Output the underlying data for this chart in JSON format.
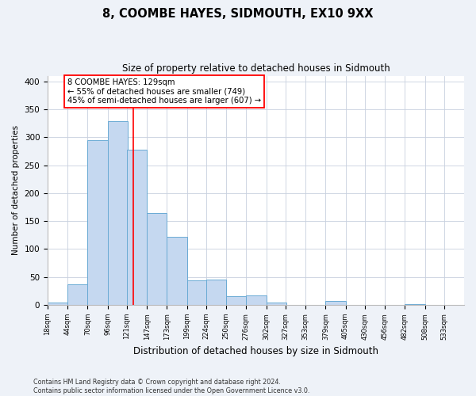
{
  "title": "8, COOMBE HAYES, SIDMOUTH, EX10 9XX",
  "subtitle": "Size of property relative to detached houses in Sidmouth",
  "xlabel": "Distribution of detached houses by size in Sidmouth",
  "ylabel": "Number of detached properties",
  "bin_labels": [
    "18sqm",
    "44sqm",
    "70sqm",
    "96sqm",
    "121sqm",
    "147sqm",
    "173sqm",
    "199sqm",
    "224sqm",
    "250sqm",
    "276sqm",
    "302sqm",
    "327sqm",
    "353sqm",
    "379sqm",
    "405sqm",
    "430sqm",
    "456sqm",
    "482sqm",
    "508sqm",
    "533sqm"
  ],
  "bin_edges": [
    18,
    44,
    70,
    96,
    121,
    147,
    173,
    199,
    224,
    250,
    276,
    302,
    327,
    353,
    379,
    405,
    430,
    456,
    482,
    508,
    533
  ],
  "bar_heights": [
    4,
    37,
    295,
    328,
    278,
    165,
    122,
    44,
    46,
    16,
    17,
    5,
    0,
    0,
    7,
    0,
    0,
    0,
    2,
    0,
    0
  ],
  "bar_color": "#c5d8f0",
  "bar_edge_color": "#6aaad4",
  "vline_x": 129,
  "vline_color": "red",
  "annotation_title": "8 COOMBE HAYES: 129sqm",
  "annotation_line1": "← 55% of detached houses are smaller (749)",
  "annotation_line2": "45% of semi-detached houses are larger (607) →",
  "annotation_box_color": "white",
  "annotation_box_edge_color": "red",
  "ylim": [
    0,
    410
  ],
  "yticks": [
    0,
    50,
    100,
    150,
    200,
    250,
    300,
    350,
    400
  ],
  "footer_line1": "Contains HM Land Registry data © Crown copyright and database right 2024.",
  "footer_line2": "Contains public sector information licensed under the Open Government Licence v3.0.",
  "background_color": "#eef2f8",
  "plot_background_color": "#ffffff",
  "grid_color": "#c8d0de"
}
